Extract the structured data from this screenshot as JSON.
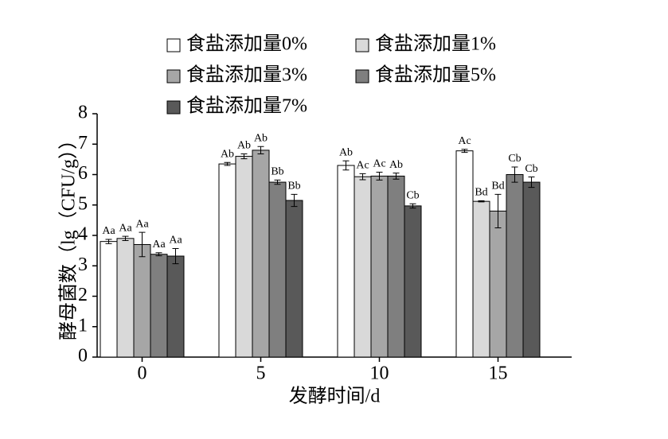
{
  "chart_data": {
    "type": "bar",
    "x_label": "发酵时间/d",
    "y_label": "酵母菌数（lg（CFU/g））",
    "categories": [
      "0",
      "5",
      "10",
      "15"
    ],
    "ylim": [
      0,
      8
    ],
    "yticks": [
      0,
      1,
      2,
      3,
      4,
      5,
      6,
      7,
      8
    ],
    "series": [
      {
        "name": "食盐添加量0%",
        "color": "#ffffff",
        "values": [
          3.8,
          6.35,
          6.3,
          6.78
        ],
        "errors": [
          0.07,
          0.05,
          0.15,
          0.05
        ],
        "letters": [
          "Aa",
          "Ab",
          "Ab",
          "Ac"
        ]
      },
      {
        "name": "食盐添加量1%",
        "color": "#d9d9d9",
        "values": [
          3.9,
          6.6,
          5.93,
          5.12
        ],
        "errors": [
          0.07,
          0.08,
          0.1,
          0.02
        ],
        "letters": [
          "Aa",
          "Ab",
          "Ac",
          "Bd"
        ]
      },
      {
        "name": "食盐添加量3%",
        "color": "#a6a6a6",
        "values": [
          3.7,
          6.8,
          5.95,
          4.8
        ],
        "errors": [
          0.4,
          0.12,
          0.13,
          0.55
        ],
        "letters": [
          "Aa",
          "Ab",
          "Ac",
          "Bd"
        ]
      },
      {
        "name": "食盐添加量5%",
        "color": "#7f7f7f",
        "values": [
          3.38,
          5.75,
          5.95,
          6.0
        ],
        "errors": [
          0.05,
          0.07,
          0.1,
          0.25
        ],
        "letters": [
          "Aa",
          "Bb",
          "Ab",
          "Cb"
        ]
      },
      {
        "name": "食盐添加量7%",
        "color": "#595959",
        "values": [
          3.32,
          5.15,
          4.97,
          5.75
        ],
        "errors": [
          0.25,
          0.2,
          0.07,
          0.17
        ],
        "letters": [
          "Aa",
          "Bb",
          "Cb",
          "Cb"
        ]
      }
    ]
  }
}
